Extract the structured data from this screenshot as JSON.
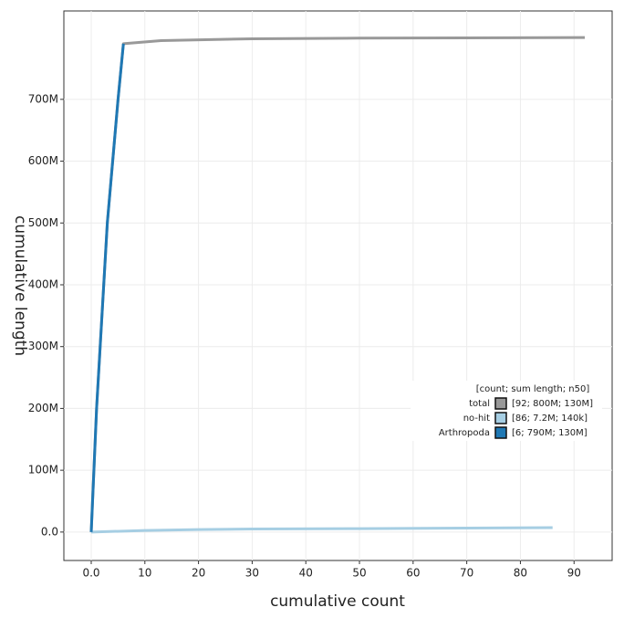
{
  "chart_data": {
    "type": "line",
    "xlabel": "cumulative count",
    "ylabel": "cumulative length",
    "xlim": [
      -5.1,
      97.1
    ],
    "ylim": [
      -46000000,
      843000000
    ],
    "xticks": [
      {
        "value": 0,
        "label": "0.0"
      },
      10,
      20,
      30,
      40,
      50,
      60,
      70,
      80,
      90
    ],
    "yticks": [
      {
        "value": 0,
        "label": "0.0"
      },
      {
        "value": 100000000,
        "label": "100M"
      },
      {
        "value": 200000000,
        "label": "200M"
      },
      {
        "value": 300000000,
        "label": "300M"
      },
      {
        "value": 400000000,
        "label": "400M"
      },
      {
        "value": 500000000,
        "label": "500M"
      },
      {
        "value": 600000000,
        "label": "600M"
      },
      {
        "value": 700000000,
        "label": "700M"
      }
    ],
    "grid": true,
    "legend_title": "[count; sum length; n50]",
    "series": [
      {
        "name": "total",
        "label": "[92; 800M; 130M]",
        "color": "#999999",
        "x": [
          0,
          1,
          2,
          3,
          4,
          5,
          6,
          13,
          30,
          50,
          70,
          92
        ],
        "values": [
          0,
          200000000,
          350000000,
          500000000,
          600000000,
          700000000,
          790000000,
          795000000,
          798000000,
          799000000,
          799500000,
          800000000
        ]
      },
      {
        "name": "no-hit",
        "label": "[86; 7.2M; 140k]",
        "color": "#a6cee3",
        "x": [
          0,
          10,
          20,
          30,
          50,
          70,
          86
        ],
        "values": [
          0,
          2500000,
          4000000,
          5000000,
          5500000,
          6500000,
          7200000
        ]
      },
      {
        "name": "Arthropoda",
        "label": "[6; 790M; 130M]",
        "color": "#1f78b4",
        "x": [
          0,
          1,
          2,
          3,
          4,
          5,
          6
        ],
        "values": [
          0,
          200000000,
          350000000,
          500000000,
          600000000,
          700000000,
          790000000
        ]
      }
    ]
  }
}
